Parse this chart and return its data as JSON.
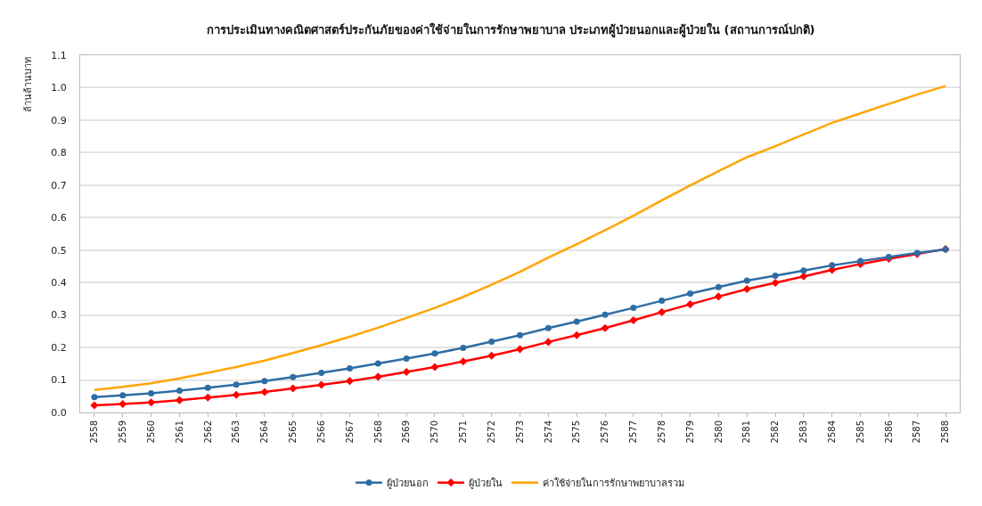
{
  "chart_data": {
    "type": "line",
    "title": "การประเมินทางคณิตศาสตร์ประกันภัยของค่าใช้จ่ายในการรักษาพยาบาล ประเภทผู้ป่วยนอกและผู้ป่วยใน (สถานการณ์ปกติ)",
    "ylabel": "ล้านล้านบาท",
    "categories": [
      "2558",
      "2559",
      "2560",
      "2561",
      "2562",
      "2563",
      "2564",
      "2565",
      "2566",
      "2567",
      "2568",
      "2569",
      "2570",
      "2571",
      "2572",
      "2573",
      "2574",
      "2575",
      "2576",
      "2577",
      "2578",
      "2579",
      "2580",
      "2581",
      "2582",
      "2583",
      "2584",
      "2585",
      "2586",
      "2587",
      "2588"
    ],
    "series": [
      {
        "name": "ผู้ป่วยนอก",
        "color": "#2e6da4",
        "marker": "circle",
        "values": [
          0.047,
          0.053,
          0.059,
          0.067,
          0.076,
          0.086,
          0.097,
          0.109,
          0.122,
          0.136,
          0.151,
          0.166,
          0.182,
          0.199,
          0.218,
          0.238,
          0.26,
          0.28,
          0.301,
          0.322,
          0.344,
          0.366,
          0.386,
          0.406,
          0.421,
          0.437,
          0.453,
          0.466,
          0.479,
          0.491,
          0.502
        ]
      },
      {
        "name": "ผู้ป่วยใน",
        "color": "#ff0000",
        "marker": "diamond",
        "values": [
          0.022,
          0.026,
          0.031,
          0.038,
          0.046,
          0.054,
          0.063,
          0.074,
          0.085,
          0.097,
          0.11,
          0.125,
          0.14,
          0.157,
          0.175,
          0.195,
          0.217,
          0.238,
          0.26,
          0.284,
          0.309,
          0.333,
          0.357,
          0.38,
          0.399,
          0.419,
          0.439,
          0.457,
          0.473,
          0.488,
          0.503
        ]
      },
      {
        "name": "ค่าใช้จ่ายในการรักษาพยาบาลรวม",
        "color": "#ffa500",
        "marker": "none",
        "values": [
          0.069,
          0.079,
          0.09,
          0.105,
          0.122,
          0.14,
          0.16,
          0.183,
          0.207,
          0.233,
          0.261,
          0.291,
          0.322,
          0.356,
          0.393,
          0.433,
          0.477,
          0.518,
          0.561,
          0.606,
          0.653,
          0.699,
          0.743,
          0.786,
          0.82,
          0.856,
          0.892,
          0.921,
          0.95,
          0.979,
          1.005
        ]
      }
    ],
    "ylim": [
      0,
      1.1
    ],
    "yticks": [
      {
        "value": 0,
        "label": "0.0"
      },
      0.1,
      0.2,
      0.3,
      0.4,
      0.5,
      0.6,
      0.7,
      0.8,
      0.9,
      {
        "value": 1,
        "label": "1.0"
      },
      1.1
    ],
    "grid": "y",
    "legend": "bottom"
  }
}
